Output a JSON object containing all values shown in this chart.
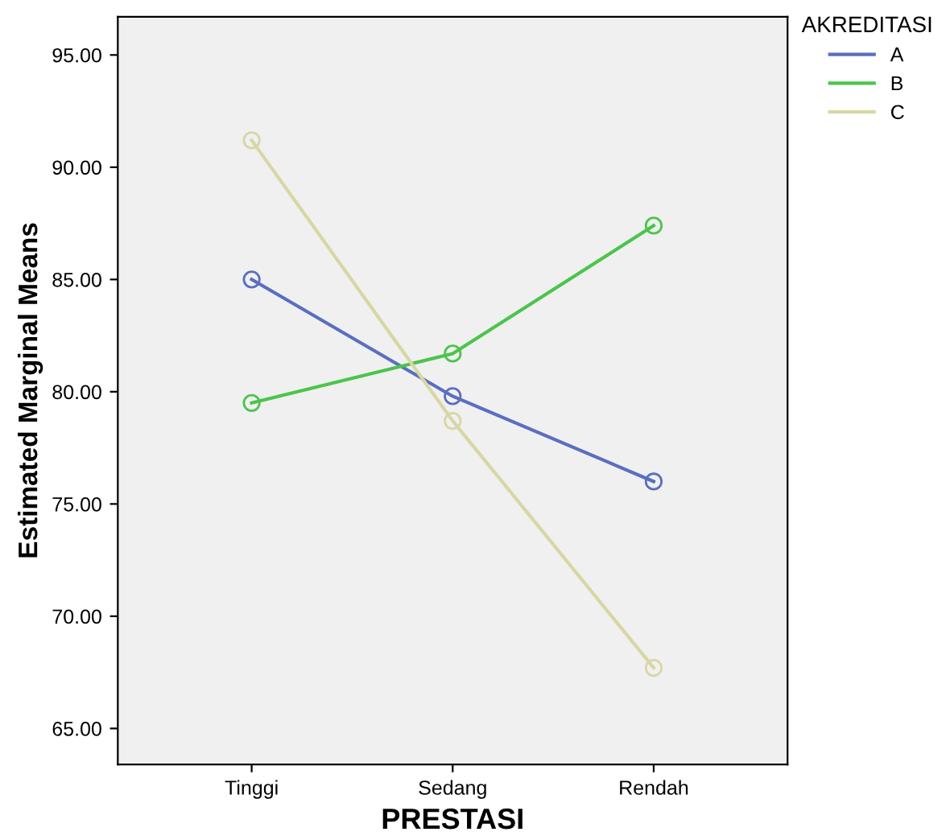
{
  "chart_data": {
    "type": "line",
    "xlabel": "PRESTASI",
    "ylabel": "Estimated Marginal Means",
    "legend_title": "AKREDITASI",
    "categories": [
      "Tinggi",
      "Sedang",
      "Rendah"
    ],
    "series": [
      {
        "name": "A",
        "color": "#5a6fbf",
        "values": [
          85.0,
          79.8,
          76.0
        ]
      },
      {
        "name": "B",
        "color": "#4cc44c",
        "values": [
          79.5,
          81.7,
          87.4
        ]
      },
      {
        "name": "C",
        "color": "#d8d6a4",
        "values": [
          91.2,
          78.7,
          67.7
        ]
      }
    ],
    "ylim": [
      63.4,
      96.7
    ],
    "yticks": [
      {
        "value": 65,
        "label": "65.00"
      },
      {
        "value": 70,
        "label": "70.00"
      },
      {
        "value": 75,
        "label": "75.00"
      },
      {
        "value": 80,
        "label": "80.00"
      },
      {
        "value": 85,
        "label": "85.00"
      },
      {
        "value": 90,
        "label": "90.00"
      },
      {
        "value": 95,
        "label": "95.00"
      }
    ],
    "marker": "circle",
    "line_style": "solid",
    "grid": false,
    "legend": "top right"
  }
}
